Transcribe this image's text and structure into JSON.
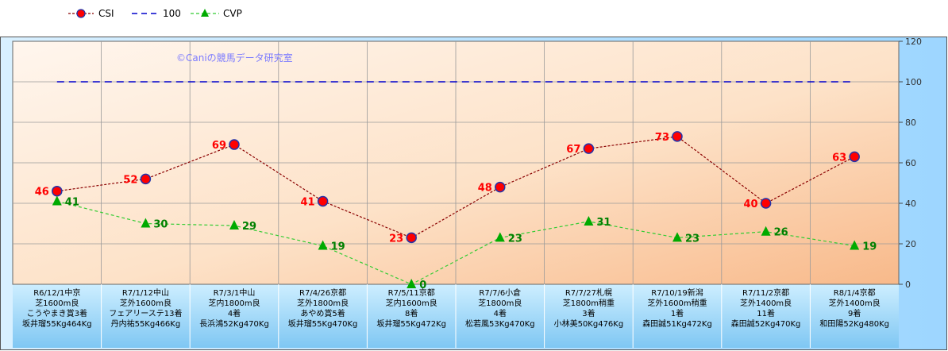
{
  "chart_data": {
    "type": "line",
    "watermark": "©Caniの競馬データ研究室",
    "categories": [
      [
        "R6/12/1中京",
        "芝1600m良",
        "こうやまき賞3着",
        "坂井瑠55Kg464Kg"
      ],
      [
        "R7/1/12中山",
        "芝外1600m良",
        "フェアリーステ13着",
        "丹内祐55Kg466Kg"
      ],
      [
        "R7/3/1中山",
        "芝内1800m良",
        "4着",
        "長浜鴻52Kg470Kg"
      ],
      [
        "R7/4/26京都",
        "芝外1800m良",
        "あやめ賞5着",
        "坂井瑠55Kg470Kg"
      ],
      [
        "R7/5/11京都",
        "芝内1600m良",
        "8着",
        "坂井瑠55Kg472Kg"
      ],
      [
        "R7/7/6小倉",
        "芝1800m良",
        "4着",
        "松若風53Kg470Kg"
      ],
      [
        "R7/7/27札幌",
        "芝1800m稍重",
        "3着",
        "小林美50Kg476Kg"
      ],
      [
        "R7/10/19新潟",
        "芝外1600m稍重",
        "1着",
        "森田誠51Kg472Kg"
      ],
      [
        "R7/11/2京都",
        "芝外1400m良",
        "11着",
        "森田誠52Kg470Kg"
      ],
      [
        "R8/1/4京都",
        "芝外1400m良",
        "9着",
        "和田陽52Kg480Kg"
      ]
    ],
    "series": [
      {
        "name": "CSI",
        "values": [
          46,
          52,
          69,
          41,
          23,
          48,
          67,
          73,
          40,
          63
        ],
        "color": "#8b0000",
        "marker_color": "#ff0000"
      },
      {
        "name": "100",
        "values": [
          100,
          100,
          100,
          100,
          100,
          100,
          100,
          100,
          100,
          100
        ],
        "color": "#0000cc"
      },
      {
        "name": "CVP",
        "values": [
          41,
          30,
          29,
          19,
          0,
          23,
          31,
          23,
          26,
          19
        ],
        "color": "#33cc33",
        "marker_color": "#00aa00"
      }
    ],
    "ylim": [
      0,
      120
    ],
    "yticks": [
      0,
      20,
      40,
      60,
      80,
      100,
      120
    ],
    "y_axis_side": "right",
    "grid": true,
    "legend_position": "top-left"
  }
}
